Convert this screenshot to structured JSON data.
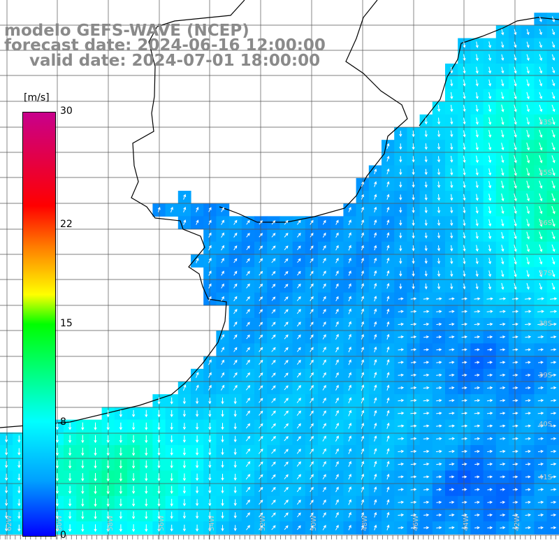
{
  "title": {
    "line1": "modelo GEFS-WAVE (NCEP)",
    "line2": "forecast date: 2024-06-16 12:00:00",
    "line3": "valid date: 2024-07-01 18:00:00"
  },
  "colorbar": {
    "unit": "[m/s]",
    "ticks": [
      "30",
      "22",
      "15",
      "8",
      "0"
    ],
    "vmin": 0,
    "vmax": 30,
    "colors": [
      "#0000ff",
      "#00a0ff",
      "#00ffff",
      "#00ff00",
      "#ffff00",
      "#ff8000",
      "#ff0000",
      "#c8008c"
    ]
  },
  "grid": {
    "lon_labels": [
      "62W",
      "60W",
      "58W",
      "56W",
      "54W",
      "52W",
      "50W",
      "48W",
      "46W",
      "44W",
      "42W"
    ],
    "lat_labels": [
      "33S",
      "35S",
      "36S",
      "37S",
      "38S",
      "39S",
      "40S",
      "41S"
    ]
  },
  "map": {
    "land_color": "#ffffff",
    "coastline_color": "#000000",
    "arrow_color": "#ffffff"
  }
}
